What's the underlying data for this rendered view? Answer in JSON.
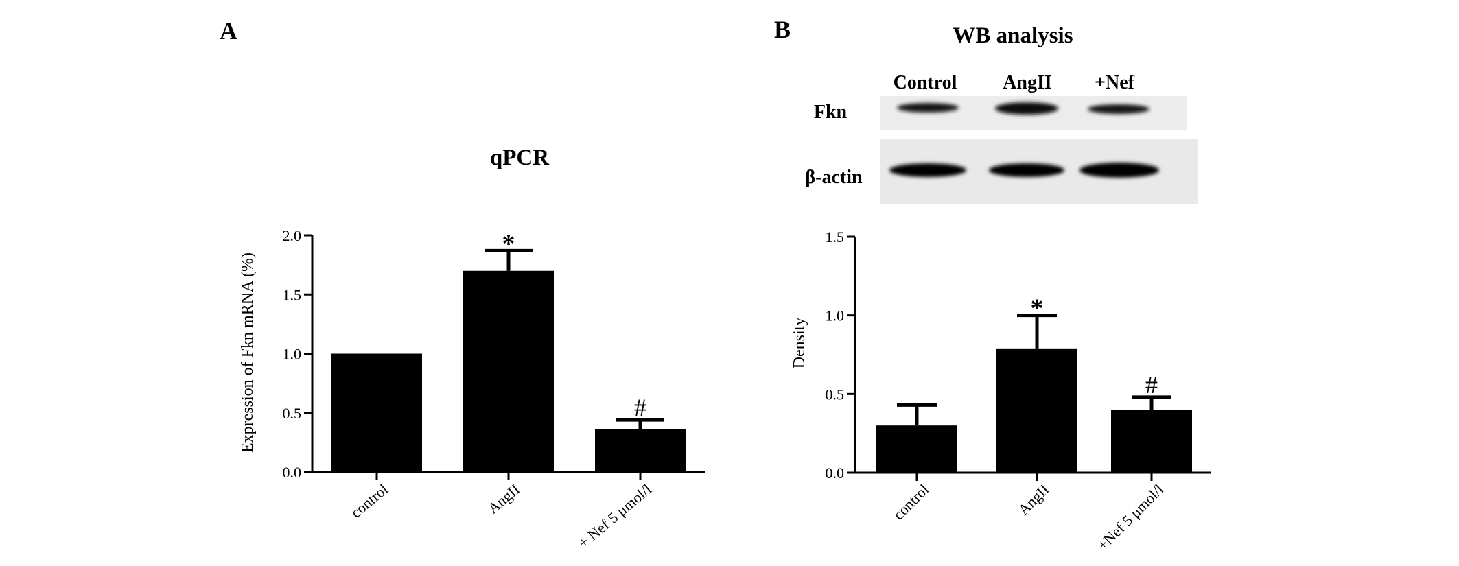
{
  "panels": {
    "A": {
      "letter": "A"
    },
    "B": {
      "letter": "B",
      "blot_title": "WB analysis"
    }
  },
  "western_blot": {
    "lanes": [
      "Control",
      "AngII",
      "+Nef"
    ],
    "rows": [
      "Fkn",
      "β-actin"
    ]
  },
  "chart_data": [
    {
      "type": "bar",
      "title": "qPCR",
      "xlabel": "",
      "ylabel": "Expression of Fkn mRNA (%)",
      "categories": [
        "control",
        "AngII",
        "+ Nef 5 μmol/l"
      ],
      "values": [
        1.0,
        1.7,
        0.36
      ],
      "error": [
        0.0,
        0.17,
        0.08
      ],
      "annotations": [
        "",
        "*",
        "#"
      ],
      "ylim": [
        0,
        2.0
      ],
      "yticks": [
        "0.0",
        "0.5",
        "1.0",
        "1.5",
        "2.0"
      ],
      "grid": false,
      "bar_color": "#000000"
    },
    {
      "type": "bar",
      "title": "",
      "xlabel": "",
      "ylabel": "Density",
      "categories": [
        "control",
        "AngII",
        "+Nef 5 μmol/l"
      ],
      "values": [
        0.3,
        0.79,
        0.4
      ],
      "error": [
        0.13,
        0.21,
        0.08
      ],
      "annotations": [
        "",
        "*",
        "#"
      ],
      "ylim": [
        0,
        1.5
      ],
      "yticks": [
        "0.0",
        "0.5",
        "1.0",
        "1.5"
      ],
      "grid": false,
      "bar_color": "#000000"
    }
  ]
}
